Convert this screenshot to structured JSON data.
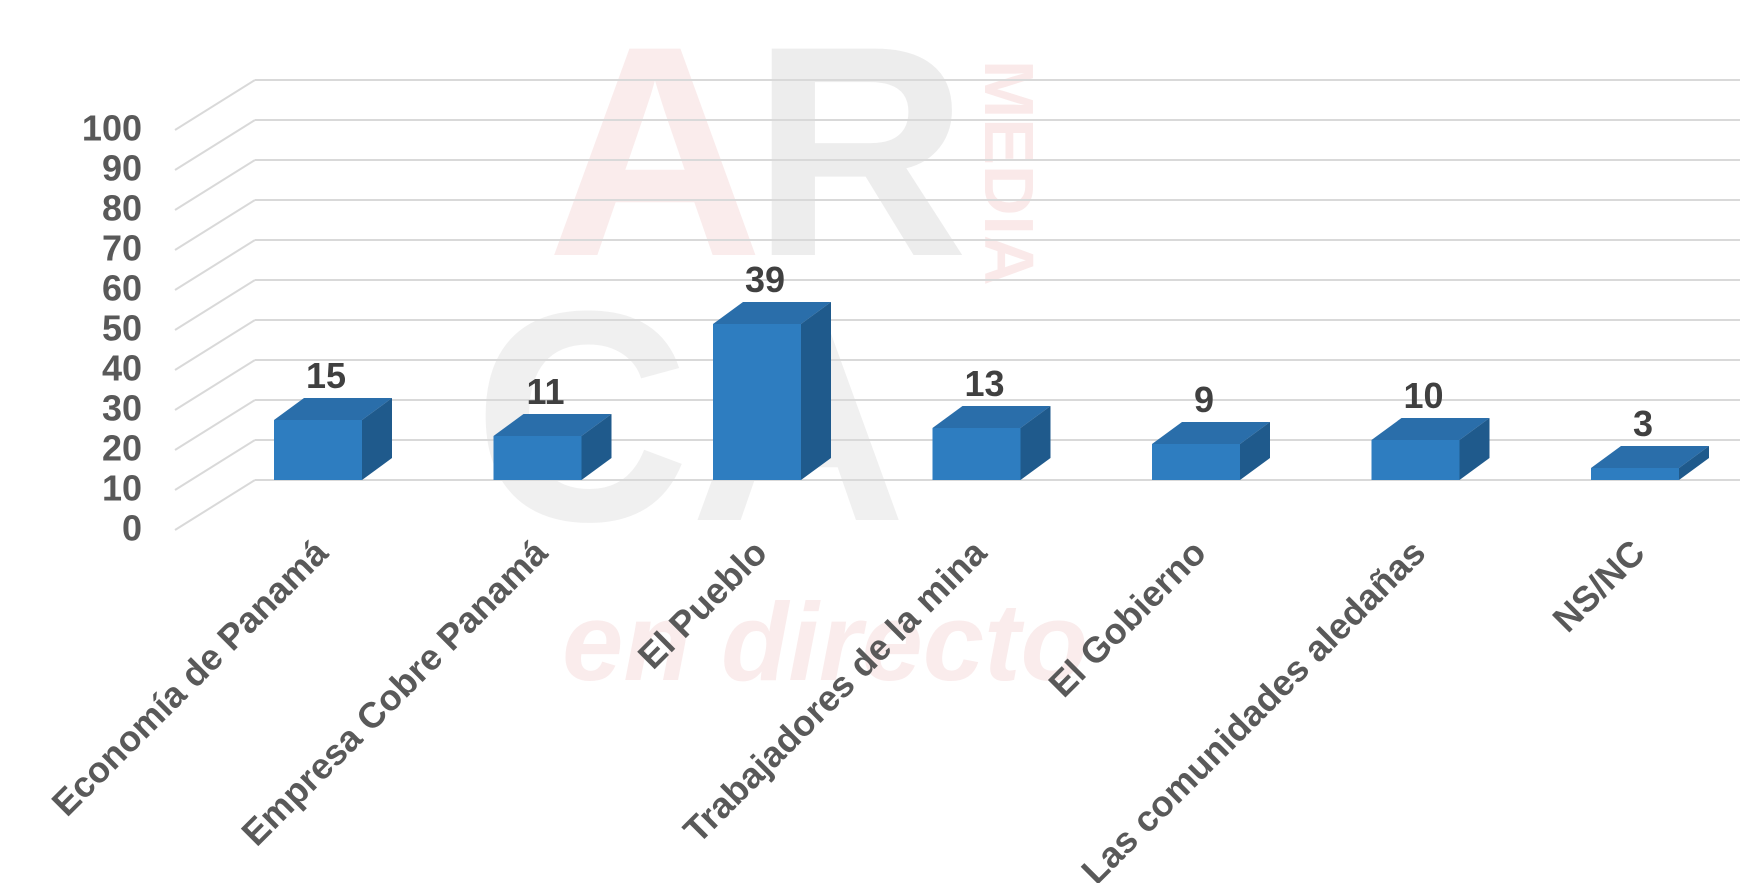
{
  "watermark": {
    "letters_main": "AR",
    "letters_secondary": "CA",
    "vertical_word": "MEDIA",
    "script_text": "en directo"
  },
  "colors": {
    "bar_front": "#2E7DC0",
    "bar_top": "#2A6EAA",
    "bar_side": "#1F5A8C",
    "grid": "#D9D9D9",
    "axis_text": "#595959",
    "label_text": "#404040"
  },
  "chart_data": {
    "type": "bar",
    "style": "3d-column",
    "categories": [
      "Economía de Panamá",
      "Empresa Cobre Panamá",
      "El Pueblo",
      "Trabajadores de la mina",
      "El Gobierno",
      "Las comunidades aledañas",
      "NS/NC"
    ],
    "values": [
      15,
      11,
      39,
      13,
      9,
      10,
      3
    ],
    "data_labels": [
      "15",
      "11",
      "39",
      "13",
      "9",
      "10",
      "3"
    ],
    "y_ticks": [
      "0",
      "10",
      "20",
      "30",
      "40",
      "50",
      "60",
      "70",
      "80",
      "90",
      "100"
    ],
    "ylim": [
      0,
      100
    ],
    "grid": true,
    "legend": "none",
    "title": "",
    "xlabel": "",
    "ylabel": ""
  }
}
